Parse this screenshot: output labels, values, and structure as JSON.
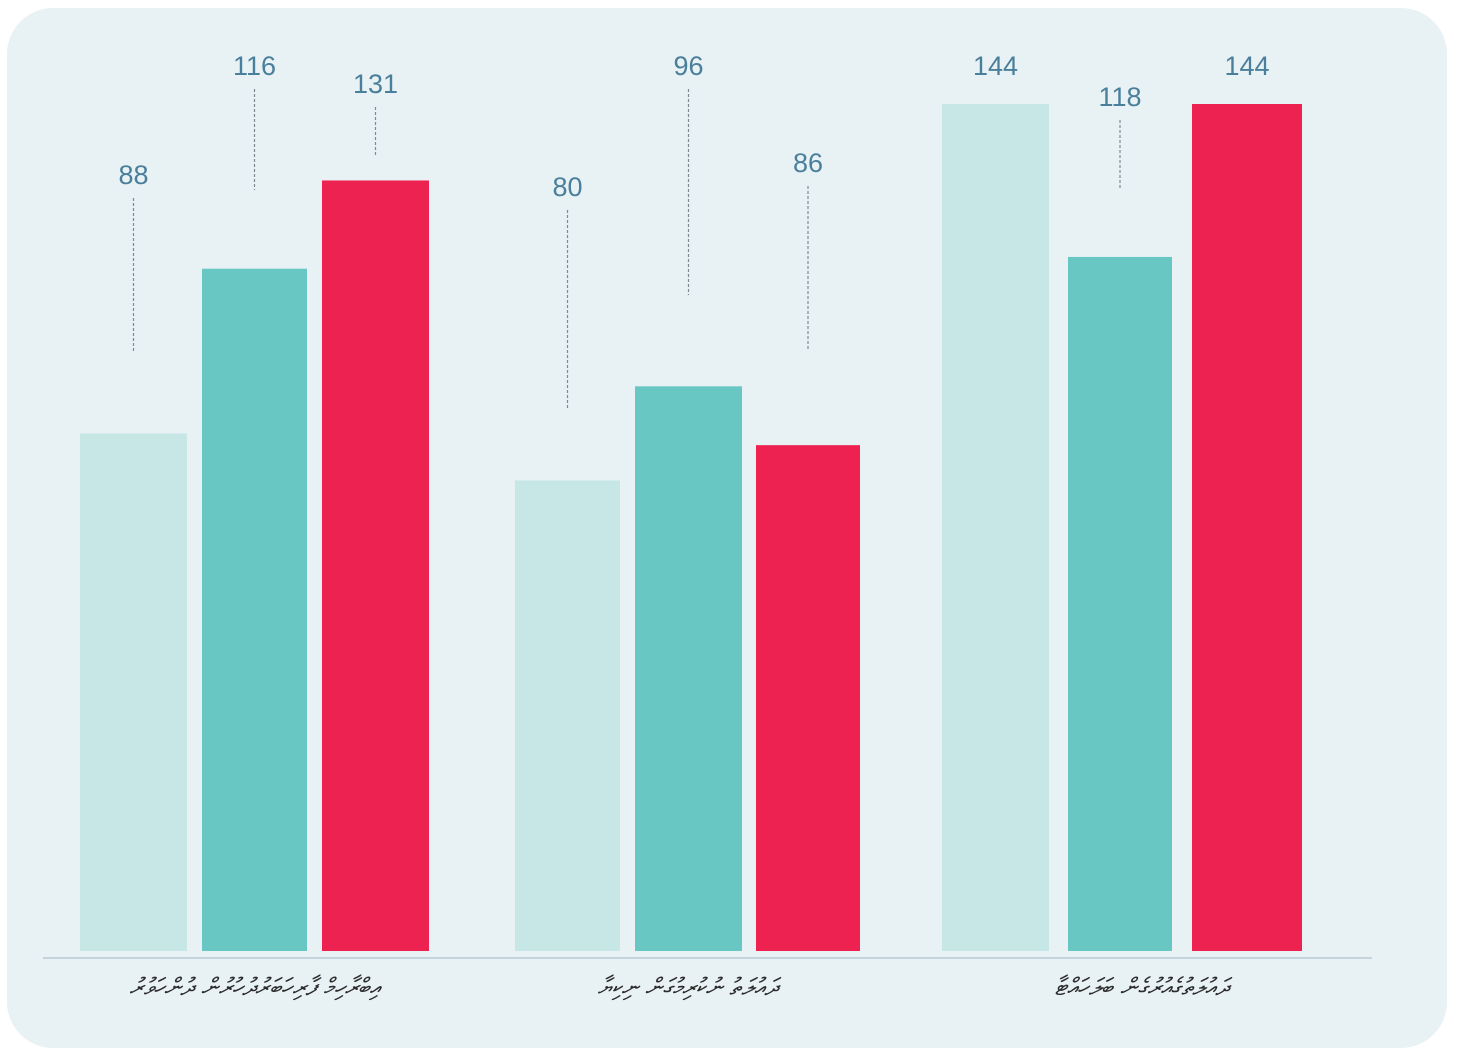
{
  "chart_data": {
    "type": "bar",
    "categories": [
      "އިބްރާހިމް ފާރިހަބަރުދުހުރުން ދުންހަވުރު",
      "ދައުލަތު ނުކުރިމުގަން ނިކިޔާ",
      "ދައުލަތުގެއުރުގެން ބަލަހައްޓާ"
    ],
    "series": [
      {
        "values": [
          88,
          80,
          144
        ]
      },
      {
        "values": [
          116,
          96,
          118
        ]
      },
      {
        "values": [
          131,
          86,
          144
        ]
      }
    ],
    "colors": [
      "#c7e6e6",
      "#69c7c3",
      "#ed2250"
    ],
    "title": "",
    "xlabel": "",
    "ylabel": "",
    "ylim": [
      0,
      160
    ],
    "grid": false,
    "legend": "none"
  }
}
